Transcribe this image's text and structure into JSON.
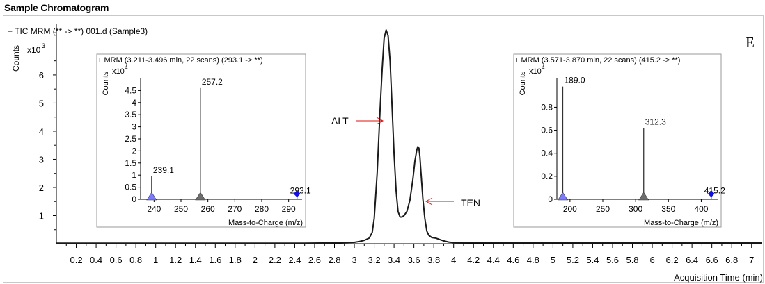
{
  "page_title": "Sample Chromatogram",
  "panel_letter": "E",
  "chart_data": [
    {
      "type": "line",
      "title": "+ TIC MRM (** -> **) 001.d (Sample3)",
      "ylabel": "Counts",
      "y_exponent": "x10",
      "y_exponent_power": "3",
      "xlabel": "Acquisition Time (min)",
      "xlim": [
        0,
        7.1
      ],
      "ylim": [
        0,
        7.8
      ],
      "x_ticks": [
        "0.2",
        "0.4",
        "0.6",
        "0.8",
        "1",
        "1.2",
        "1.4",
        "1.6",
        "1.8",
        "2",
        "2.2",
        "2.4",
        "2.6",
        "2.8",
        "3",
        "3.2",
        "3.4",
        "3.6",
        "3.8",
        "4",
        "4.2",
        "4.4",
        "4.6",
        "4.8",
        "5",
        "5.2",
        "5.4",
        "5.6",
        "5.8",
        "6",
        "6.2",
        "6.4",
        "6.6",
        "6.8",
        "7"
      ],
      "y_ticks": [
        "1",
        "2",
        "3",
        "4",
        "5",
        "6"
      ],
      "series": [
        {
          "x": [
            0.0,
            0.5,
            1.0,
            1.5,
            2.0,
            2.5,
            2.8,
            3.0,
            3.05,
            3.1,
            3.15,
            3.18,
            3.2,
            3.23,
            3.26,
            3.28,
            3.3,
            3.32,
            3.34,
            3.36,
            3.38,
            3.4,
            3.42,
            3.44,
            3.46,
            3.48,
            3.5,
            3.53,
            3.56,
            3.59,
            3.61,
            3.63,
            3.64,
            3.65,
            3.66,
            3.67,
            3.69,
            3.71,
            3.73,
            3.75,
            3.78,
            3.82,
            3.86,
            3.9,
            3.95,
            4.0,
            4.5,
            5.0,
            5.5,
            6.0,
            6.5,
            7.0,
            7.1
          ],
          "y": [
            0.02,
            0.02,
            0.02,
            0.02,
            0.02,
            0.02,
            0.03,
            0.05,
            0.08,
            0.12,
            0.2,
            0.4,
            0.9,
            2.5,
            4.8,
            6.2,
            7.3,
            7.6,
            7.4,
            6.5,
            4.9,
            3.2,
            1.9,
            1.15,
            0.95,
            0.95,
            1.0,
            1.15,
            1.55,
            2.3,
            2.95,
            3.35,
            3.45,
            3.4,
            3.1,
            2.6,
            1.6,
            0.9,
            0.45,
            0.3,
            0.22,
            0.2,
            0.15,
            0.1,
            0.06,
            0.04,
            0.03,
            0.03,
            0.03,
            0.03,
            0.03,
            0.03,
            0.03
          ]
        }
      ],
      "annotations": [
        {
          "text": "ALT",
          "x": 3.32,
          "y": 4.3
        },
        {
          "text": "TEN",
          "x": 3.67,
          "y": 1.85
        }
      ]
    },
    {
      "type": "bar",
      "title": "+ MRM (3.211-3.496 min, 22 scans) (293.1 -> **)",
      "ylabel": "Counts",
      "y_exponent": "x10",
      "y_exponent_power": "4",
      "xlabel": "Mass-to-Charge (m/z)",
      "xlim": [
        235,
        295
      ],
      "ylim": [
        0,
        5.0
      ],
      "x_ticks": [
        "240",
        "250",
        "260",
        "270",
        "280",
        "290"
      ],
      "y_ticks": [
        "0",
        "0.5",
        "1",
        "1.5",
        "2",
        "2.5",
        "3",
        "3.5",
        "4",
        "4.5"
      ],
      "peaks": [
        {
          "mz": 239.1,
          "value": 0.95,
          "label": "239.1"
        },
        {
          "mz": 257.2,
          "value": 4.6,
          "label": "257.2"
        },
        {
          "mz": 293.1,
          "value": 0.1,
          "label": "293.1"
        }
      ],
      "markers": [
        {
          "mz": 239.1,
          "shape": "triangle",
          "color": "#7b7bff"
        },
        {
          "mz": 257.2,
          "shape": "triangle",
          "color": "#6d6d6d"
        },
        {
          "mz": 293.1,
          "shape": "diamond",
          "color": "#1010e0"
        }
      ]
    },
    {
      "type": "bar",
      "title": "+ MRM (3.571-3.870 min, 22 scans) (415.2 -> **)",
      "ylabel": "Counts",
      "y_exponent": "x10",
      "y_exponent_power": "4",
      "xlabel": "Mass-to-Charge (m/z)",
      "xlim": [
        180,
        425
      ],
      "ylim": [
        0,
        1.05
      ],
      "x_ticks": [
        "200",
        "250",
        "300",
        "350",
        "400"
      ],
      "y_ticks": [
        "0",
        "0.2",
        "0.4",
        "0.6",
        "0.8"
      ],
      "peaks": [
        {
          "mz": 189.0,
          "value": 0.98,
          "label": "189.0"
        },
        {
          "mz": 312.3,
          "value": 0.62,
          "label": "312.3"
        },
        {
          "mz": 415.2,
          "value": 0.02,
          "label": "415.2"
        }
      ],
      "markers": [
        {
          "mz": 189.0,
          "shape": "triangle",
          "color": "#7b7bff"
        },
        {
          "mz": 312.3,
          "shape": "triangle",
          "color": "#6d6d6d"
        },
        {
          "mz": 415.2,
          "shape": "diamond",
          "color": "#1010e0"
        }
      ]
    }
  ],
  "colors": {
    "trace": "#1a1a1a",
    "annotation": "#e01010",
    "axis": "#000000"
  }
}
